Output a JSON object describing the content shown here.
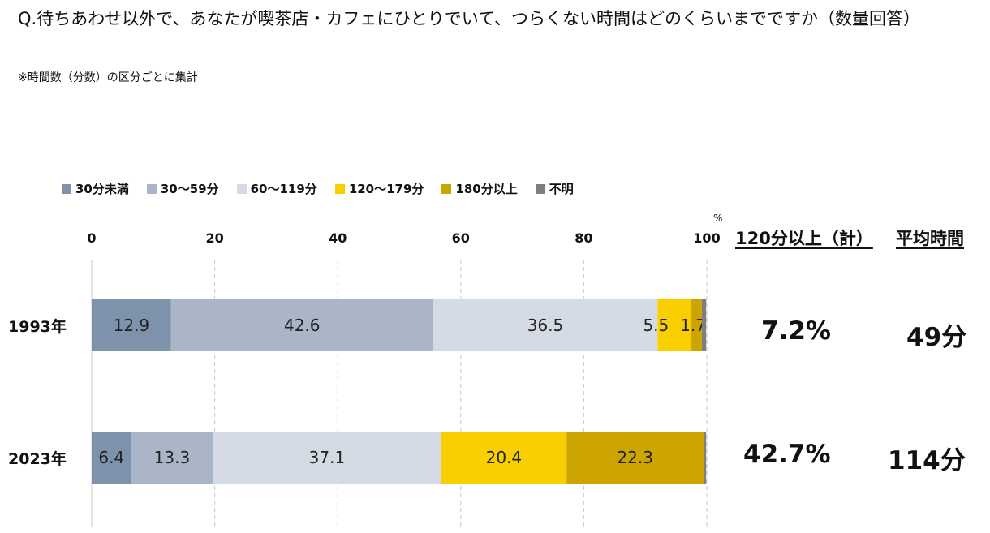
{
  "question": "Q.待ちあわせ以外で、あなたが喫茶店・カフェにひとりでいて、つらくない時間はどのくらいまでですか（数量回答）",
  "note": "※時間数（分数）の区分ごとに集計",
  "unit": "%",
  "colors": {
    "under30": "#7e93ab",
    "m30_59": "#aab6c7",
    "m60_119": "#d5dbe5",
    "m120_179": "#f9cf00",
    "m180_plus": "#cda500",
    "unknown": "#7f7f7f"
  },
  "columns": {
    "total120": "120分以上（計）",
    "average": "平均時間"
  },
  "rows": [
    {
      "year": "1993年",
      "total120": "7.2%",
      "average": "49分"
    },
    {
      "year": "2023年",
      "total120": "42.7%",
      "average": "114分"
    }
  ],
  "chart_data": {
    "type": "bar",
    "orientation": "horizontal",
    "stacked": true,
    "categories": [
      "1993年",
      "2023年"
    ],
    "xlim": [
      0,
      100
    ],
    "xticks": [
      0,
      20,
      40,
      60,
      80,
      100
    ],
    "grid": true,
    "legend_position": "top-left",
    "series": [
      {
        "name": "30分未満",
        "values": [
          12.9,
          6.4
        ],
        "labels": [
          "12.9",
          "6.4"
        ],
        "color": "#7e93ab"
      },
      {
        "name": "30～59分",
        "values": [
          42.6,
          13.3
        ],
        "labels": [
          "42.6",
          "13.3"
        ],
        "color": "#aab6c7"
      },
      {
        "name": "60～119分",
        "values": [
          36.5,
          37.1
        ],
        "labels": [
          "36.5",
          "37.1"
        ],
        "color": "#d5dbe5"
      },
      {
        "name": "120～179分",
        "values": [
          5.5,
          20.4
        ],
        "labels": [
          "5.5",
          "20.4"
        ],
        "color": "#f9cf00"
      },
      {
        "name": "180分以上",
        "values": [
          1.7,
          22.3
        ],
        "labels": [
          "1.7",
          "22.3"
        ],
        "color": "#cda500"
      },
      {
        "name": "不明",
        "values": [
          0.7,
          0.4
        ],
        "labels": [
          "",
          ""
        ],
        "color": "#7f7f7f"
      }
    ]
  }
}
